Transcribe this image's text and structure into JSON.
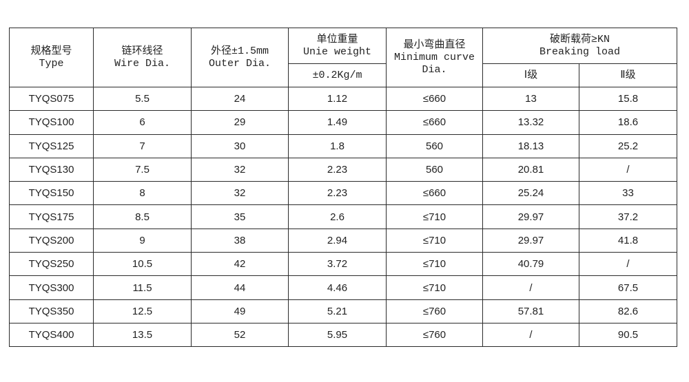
{
  "header": {
    "type": {
      "zh": "规格型号",
      "en": "Type"
    },
    "wire": {
      "zh": "链环线径",
      "en": "Wire Dia."
    },
    "outer": {
      "zh": "外径±1.5mm",
      "en": "Outer Dia."
    },
    "weight": {
      "zh": "单位重量",
      "en": "Unie weight",
      "unit": "±0.2Kg/m"
    },
    "curve": {
      "zh": "最小弯曲直径",
      "en1": "Minimum curve",
      "en2": "Dia."
    },
    "breaking": {
      "zh": "破断载荷≥KN",
      "en": "Breaking load",
      "grade1": "Ⅰ级",
      "grade2": "Ⅱ级"
    }
  },
  "rows": [
    [
      "TYQS075",
      "5.5",
      "24",
      "1.12",
      "≤660",
      "13",
      "15.8"
    ],
    [
      "TYQS100",
      "6",
      "29",
      "1.49",
      "≤660",
      "13.32",
      "18.6"
    ],
    [
      "TYQS125",
      "7",
      "30",
      "1.8",
      "560",
      "18.13",
      "25.2"
    ],
    [
      "TYQS130",
      "7.5",
      "32",
      "2.23",
      "560",
      "20.81",
      "/"
    ],
    [
      "TYQS150",
      "8",
      "32",
      "2.23",
      "≤660",
      "25.24",
      "33"
    ],
    [
      "TYQS175",
      "8.5",
      "35",
      "2.6",
      "≤710",
      "29.97",
      "37.2"
    ],
    [
      "TYQS200",
      "9",
      "38",
      "2.94",
      "≤710",
      "29.97",
      "41.8"
    ],
    [
      "TYQS250",
      "10.5",
      "42",
      "3.72",
      "≤710",
      "40.79",
      "/"
    ],
    [
      "TYQS300",
      "11.5",
      "44",
      "4.46",
      "≤710",
      "/",
      "67.5"
    ],
    [
      "TYQS350",
      "12.5",
      "49",
      "5.21",
      "≤760",
      "57.81",
      "82.6"
    ],
    [
      "TYQS400",
      "13.5",
      "52",
      "5.95",
      "≤760",
      "/",
      "90.5"
    ]
  ]
}
